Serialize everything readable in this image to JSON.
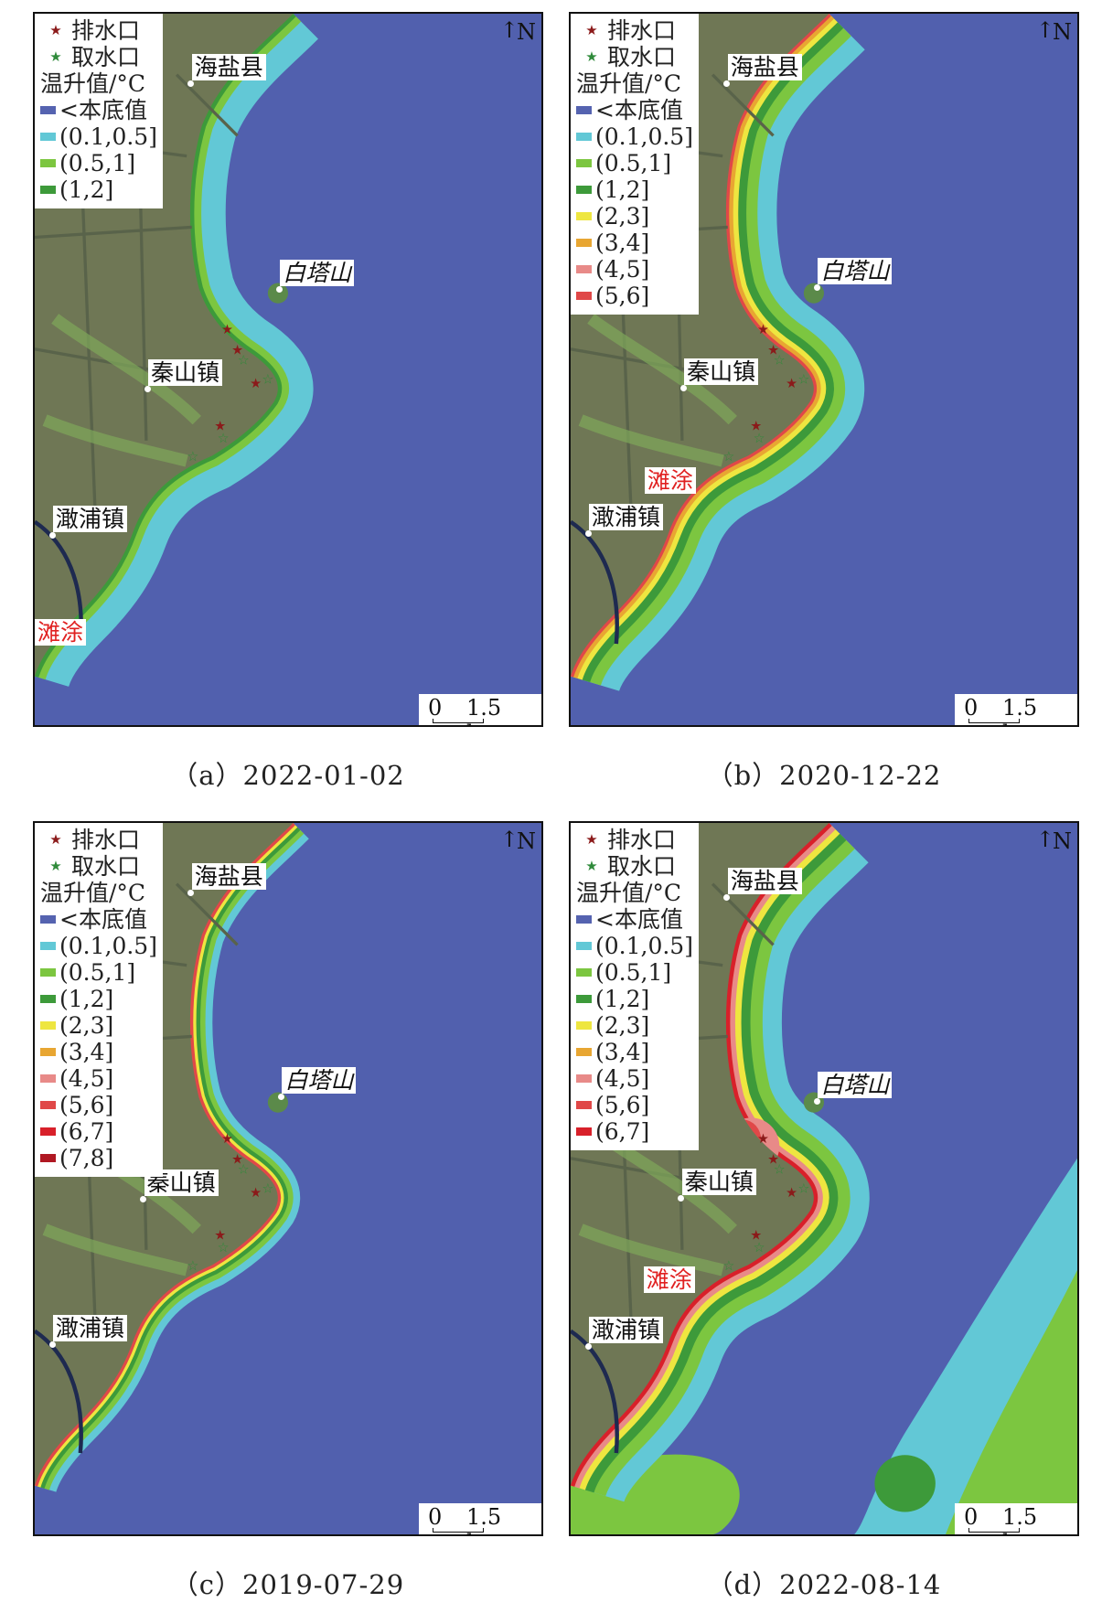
{
  "colors": {
    "sea": "#5160ae",
    "land": "#6f7755",
    "discharge_star": "#8b1a1a",
    "intake_star": "#2f8a3a"
  },
  "legend_common": {
    "discharge_label": "排水口",
    "intake_label": "取水口",
    "title": "温升值/°C"
  },
  "classes": [
    {
      "label": "<本底值",
      "color": "#5563b0"
    },
    {
      "label": "(0.1,0.5]",
      "color": "#62c8d6"
    },
    {
      "label": "(0.5,1]",
      "color": "#7cc640"
    },
    {
      "label": "(1,2]",
      "color": "#3d9a3a"
    },
    {
      "label": "(2,3]",
      "color": "#eee640"
    },
    {
      "label": "(3,4]",
      "color": "#e8a632"
    },
    {
      "label": "(4,5]",
      "color": "#e88a88"
    },
    {
      "label": "(5,6]",
      "color": "#e04848"
    },
    {
      "label": "(6,7]",
      "color": "#d8202a"
    },
    {
      "label": "(7,8]",
      "color": "#b01822"
    }
  ],
  "panels": [
    {
      "caption": "（a）2022-01-02",
      "legend_class_count": 4,
      "tidal_flat_label": "滩涂"
    },
    {
      "caption": "（b）2020-12-22",
      "legend_class_count": 8,
      "tidal_flat_label": "滩涂"
    },
    {
      "caption": "（c）2019-07-29",
      "legend_class_count": 10
    },
    {
      "caption": "（d）2022-08-14",
      "legend_class_count": 9,
      "tidal_flat_label": "滩涂"
    }
  ],
  "places": {
    "haiyan": "海盐县",
    "baitashan": "白塔山",
    "qinshan": "秦山镇",
    "ganpu": "澉浦镇"
  },
  "north_label": "N",
  "scale_bar": {
    "zero": "0",
    "distance": "1.5 km"
  }
}
